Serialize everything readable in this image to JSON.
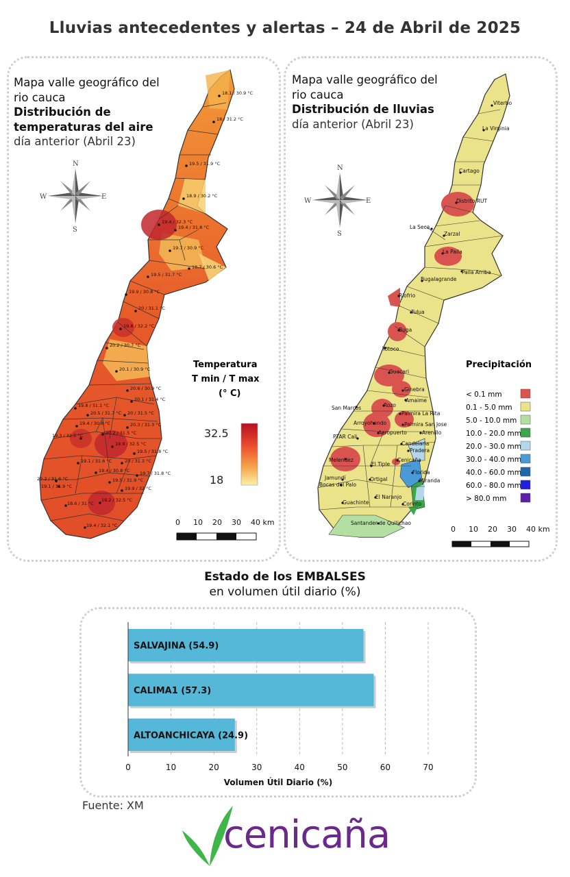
{
  "page": {
    "title": "Lluvias antecedentes y alertas – 24 de Abril de 2025",
    "source": "Fuente: XM"
  },
  "temp_map": {
    "title_line1": "Mapa valle geográfico del",
    "title_line2": "rio cauca",
    "title_line3": "Distribución de",
    "title_line4": "temperaturas del aire",
    "title_line5": "día anterior (Abril 23)",
    "legend_title_1": "Temperatura",
    "legend_title_2": "T min / T max",
    "legend_title_3": "(° C)",
    "legend_max": "32.5",
    "legend_min": "18",
    "points": [
      "18.1 / 30.9 °C",
      "18 / 31.2 °C",
      "19.5 / 31.9 °C",
      "18.9 / 30.2 °C",
      "19.4 / 32.3 °C",
      "19.4 / 31.8 °C",
      "19.7 / 30.9 °C",
      "18.7 / 30.6 °C",
      "19.5 / 31.7 °C",
      "19.9 / 30.8 °C",
      "20 / 31.1 °C",
      "19.8 / 32.2 °C",
      "20.2 / 30.7 °C",
      "20.1 / 30.9 °C",
      "20.6 / 30.9 °C",
      "20.1 / 31.4 °C",
      "19.8 / 31.1 °C",
      "20.5 / 31.7 °C",
      "20 / 31.5 °C",
      "19.4 / 30.8 °C",
      "20.3 / 31.3 °C",
      "19.3 / 32.5 °C",
      "20.2 / 31.5 °C",
      "19.9 / 32.5 °C",
      "19.5 / 31.8 °C",
      "19.1 / 31.6 °C",
      "20 / 31.3 °C",
      "19.4 / 30.8 °C",
      "19.7 / 31.8 °C",
      "20.2 / 31.6 °C",
      "19.1 / 31.9 °C",
      "19.5 / 31.9 °C",
      "19.9 / 32 °C",
      "18.6 / 31 °C",
      "19.2 / 32.5 °C",
      "19.4 / 32.1 °C"
    ]
  },
  "rain_map": {
    "title_line1": "Mapa valle geográfico del",
    "title_line2": "rio cauca",
    "title_line3": "Distribución de lluvias",
    "title_line4": "día anterior (Abril 23)",
    "legend_title": "Precipitación",
    "legend": [
      {
        "label": "< 0.1 mm",
        "color": "#d9534f"
      },
      {
        "label": "0.1 - 5.0 mm",
        "color": "#ebe38a"
      },
      {
        "label": "5.0 - 10.0 mm",
        "color": "#b4dfa3"
      },
      {
        "label": "10.0 - 20.0 mm",
        "color": "#3aa84a"
      },
      {
        "label": "20.0 - 30.0 mm",
        "color": "#b3d6ea"
      },
      {
        "label": "30.0 - 40.0 mm",
        "color": "#4b9ad8"
      },
      {
        "label": "40.0 - 60.0 mm",
        "color": "#2168a8"
      },
      {
        "label": "60.0 - 80.0 mm",
        "color": "#2020e0"
      },
      {
        "label": "> 80.0 mm",
        "color": "#5a22a6"
      }
    ],
    "towns": [
      "Viterbo",
      "La Virginia",
      "Cartago",
      "Distrito RUT",
      "La Seca",
      "Zarzal",
      "La Paila",
      "Bugalagrande",
      "Paila Arriba",
      "Riofrio",
      "Tulua",
      "Buga",
      "Yotoco",
      "Guacari",
      "Ginebra",
      "Amaime",
      "San Marcos",
      "Rozo",
      "Palmira La Rita",
      "Arroyohondo",
      "Palmira San Jose",
      "Aeropuerto",
      "PTAR Cali",
      "Arenillo",
      "Candelaria",
      "Pradera",
      "Cenicaña",
      "Melendez",
      "El Tiple",
      "Florida",
      "Jamundí",
      "Bocas del Palo",
      "Ortigal",
      "Miranda",
      "El Naranjo",
      "Guachinte",
      "Corinto",
      "Santander de Quilichao"
    ]
  },
  "compass": {
    "n": "N",
    "s": "S",
    "e": "E",
    "w": "W"
  },
  "scale": {
    "labels": [
      "0",
      "10",
      "20",
      "30",
      "40 km"
    ]
  },
  "reservoirs": {
    "title": "Estado de los EMBALSES",
    "subtitle": "en volumen útil diario (%)",
    "x_label": "Volumen Útil Diario (%)"
  },
  "chart_data": {
    "type": "bar",
    "orientation": "horizontal",
    "categories": [
      "SALVAJINA",
      "CALIMA1",
      "ALTOANCHICAYA"
    ],
    "bar_labels": [
      "SALVAJINA (54.9)",
      "CALIMA1 (57.3)",
      "ALTOANCHICAYA (24.9)"
    ],
    "values": [
      54.9,
      57.3,
      24.9
    ],
    "xlabel": "Volumen Útil Diario (%)",
    "xlim": [
      0,
      70
    ],
    "ticks": [
      "0",
      "10",
      "20",
      "30",
      "40",
      "50",
      "60",
      "70"
    ],
    "grid": true,
    "bar_color": "#56b8d9"
  },
  "logo": {
    "text": "cenicaña",
    "leaf_color": "#3fb54a",
    "text_color": "#6a2a8c"
  }
}
